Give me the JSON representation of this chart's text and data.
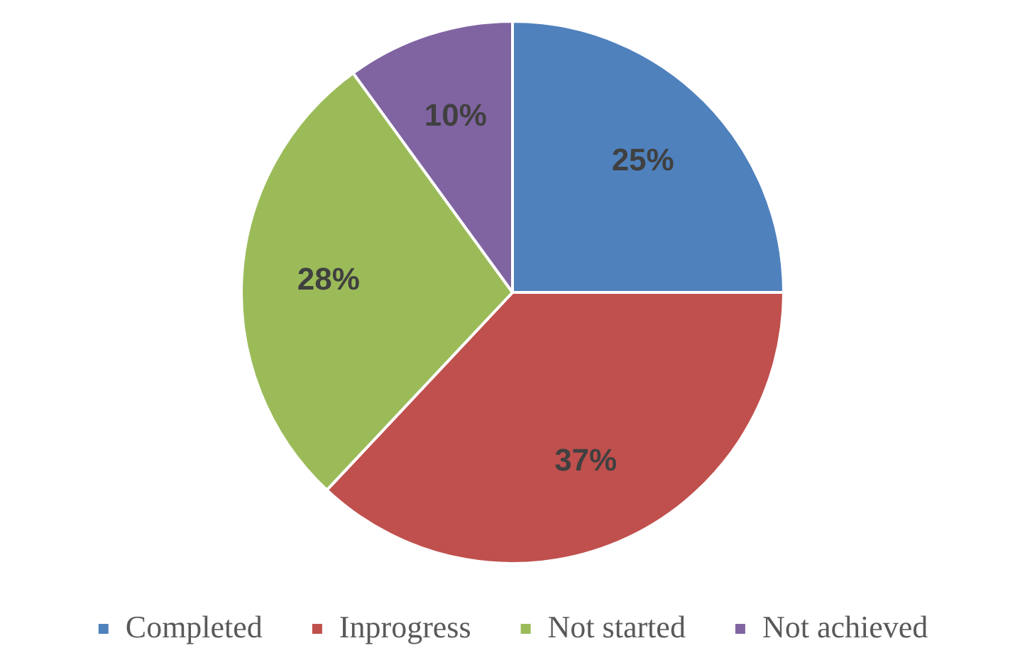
{
  "chart_data": {
    "type": "pie",
    "categories": [
      "Completed",
      "Inprogress",
      "Not started",
      "Not achieved"
    ],
    "values": [
      25,
      37,
      28,
      10
    ],
    "colors": [
      "#4f81bd",
      "#c0504d",
      "#9bbb59",
      "#8064a2"
    ],
    "value_labels": [
      "25%",
      "37%",
      "28%",
      "10%"
    ],
    "legend": "bottom"
  }
}
